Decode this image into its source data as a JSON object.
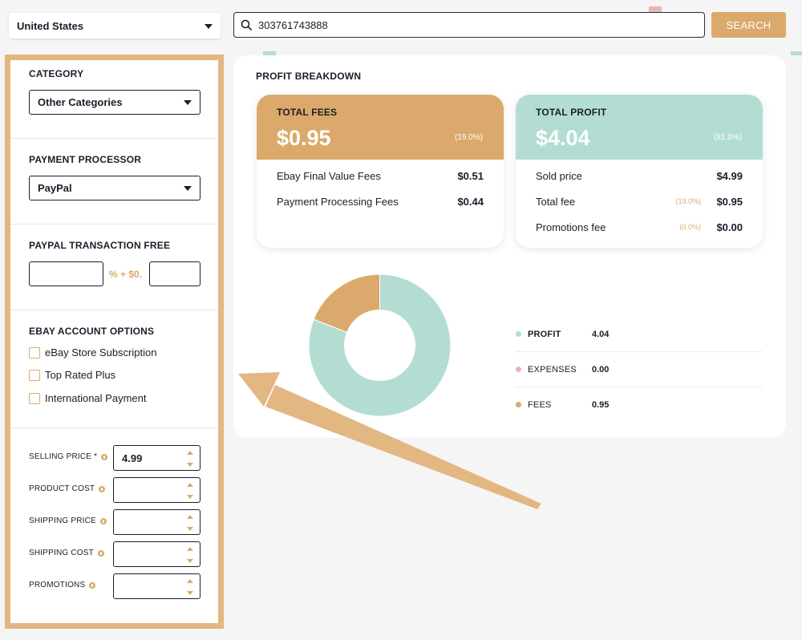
{
  "header": {
    "country": "United States",
    "search_value": "303761743888",
    "search_button": "SEARCH"
  },
  "sidebar": {
    "category": {
      "title": "CATEGORY",
      "value": "Other Categories"
    },
    "payment_processor": {
      "title": "PAYMENT PROCESSOR",
      "value": "PayPal"
    },
    "paypal_fee": {
      "title": "PAYPAL TRANSACTION FREE",
      "separator": "% + $0.",
      "percent_value": "",
      "fixed_value": ""
    },
    "ebay_options": {
      "title": "EBAY ACCOUNT OPTIONS",
      "items": [
        "eBay Store Subscription",
        "Top Rated Plus",
        "International Payment"
      ]
    },
    "prices": [
      {
        "label": "SELLING PRICE *",
        "value": "4.99"
      },
      {
        "label": "PRODUCT COST",
        "value": ""
      },
      {
        "label": "SHIPPING PRICE",
        "value": ""
      },
      {
        "label": "SHIPPING COST",
        "value": ""
      },
      {
        "label": "PROMOTIONS",
        "value": ""
      }
    ]
  },
  "breakdown": {
    "title": "PROFIT BREAKDOWN",
    "fees_panel": {
      "label": "TOTAL FEES",
      "amount": "$0.95",
      "percent": "(19.0%)",
      "rows": [
        {
          "label": "Ebay Final Value Fees",
          "value": "$0.51"
        },
        {
          "label": "Payment Processing Fees",
          "value": "$0.44"
        }
      ]
    },
    "profit_panel": {
      "label": "TOTAL PROFIT",
      "amount": "$4.04",
      "percent": "(81.0%)",
      "rows": [
        {
          "label": "Sold price",
          "pct": "",
          "value": "$4.99"
        },
        {
          "label": "Total fee",
          "pct": "(19.0%)",
          "value": "$0.95"
        },
        {
          "label": "Promotions fee",
          "pct": "(0.0%)",
          "value": "$0.00"
        }
      ]
    }
  },
  "chart_data": {
    "type": "pie",
    "categories": [
      "PROFIT",
      "EXPENSES",
      "FEES"
    ],
    "values": [
      4.04,
      0.0,
      0.95
    ],
    "value_labels": [
      "4.04",
      "0.00",
      "0.95"
    ],
    "colors": [
      "#b3ddd3",
      "#e8b7b4",
      "#dba96b"
    ]
  },
  "colors": {
    "accent": "#dba96b",
    "profit": "#b3ddd3",
    "expenses": "#e8b7b4"
  }
}
